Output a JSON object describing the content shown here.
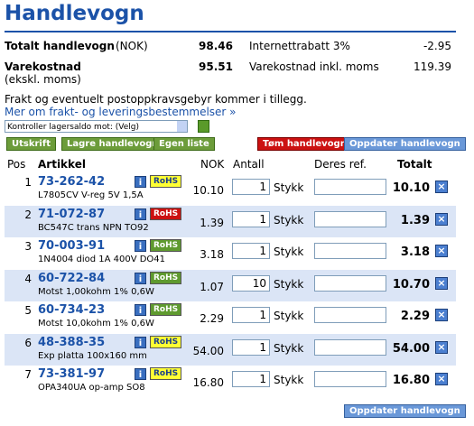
{
  "header": {
    "title": "Handlevogn"
  },
  "summary": {
    "total_label": "Totalt handlevogn",
    "total_unit": "(NOK)",
    "total_value": "98.46",
    "discount_label": "Internettrabatt 3%",
    "discount_value": "-2.95",
    "cost_label": "Varekostnad",
    "cost_note": "(ekskl. moms)",
    "cost_value": "95.51",
    "cost_vat_label": "Varekostnad inkl. moms",
    "cost_vat_value": "119.39"
  },
  "notice": "Frakt og eventuelt postoppkravsgebyr kommer i tillegg.",
  "link": "Mer om frakt- og leveringsbestemmelser »",
  "stock_select": "Kontroller lagersaldo mot: (Velg)",
  "buttons": {
    "print": "Utskrift",
    "save": "Lagre handlevogn",
    "own_list": "Egen liste",
    "empty": "Tøm handlevogn",
    "update": "Oppdater handlevogn"
  },
  "table": {
    "columns": [
      "Pos",
      "Artikkel",
      "NOK",
      "Antall",
      "Deres ref.",
      "Totalt"
    ],
    "rows": [
      {
        "pos": "1",
        "code": "73-262-42",
        "description": "L7805CV V-reg 5V 1,5A",
        "rohs": "RoHS",
        "rohs_color": "#ffff33",
        "price": "10.10",
        "qty": "1",
        "unit": "Stykk",
        "total": "10.10"
      },
      {
        "pos": "2",
        "code": "71-072-87",
        "description": "BC547C trans NPN TO92",
        "rohs": "RoHS",
        "rohs_color": "#cc1111",
        "price": "1.39",
        "qty": "1",
        "unit": "Stykk",
        "total": "1.39"
      },
      {
        "pos": "3",
        "code": "70-003-91",
        "description": "1N4004 diod 1A 400V DO41",
        "rohs": "RoHS",
        "rohs_color": "#5f9a2f",
        "price": "3.18",
        "qty": "1",
        "unit": "Stykk",
        "total": "3.18"
      },
      {
        "pos": "4",
        "code": "60-722-84",
        "description": "Motst 1,00kohm 1% 0,6W",
        "rohs": "RoHS",
        "rohs_color": "#5f9a2f",
        "price": "1.07",
        "qty": "10",
        "unit": "Stykk",
        "total": "10.70"
      },
      {
        "pos": "5",
        "code": "60-734-23",
        "description": "Motst 10,0kohm 1% 0,6W",
        "rohs": "RoHS",
        "rohs_color": "#5f9a2f",
        "price": "2.29",
        "qty": "1",
        "unit": "Stykk",
        "total": "2.29"
      },
      {
        "pos": "6",
        "code": "48-388-35",
        "description": "Exp platta 100x160 mm",
        "rohs": "RoHS",
        "rohs_color": "#ffff33",
        "price": "54.00",
        "qty": "1",
        "unit": "Stykk",
        "total": "54.00"
      },
      {
        "pos": "7",
        "code": "73-381-97",
        "description": "OPA340UA op-amp SO8",
        "rohs": "RoHS",
        "rohs_color": "#ffff33",
        "price": "16.80",
        "qty": "1",
        "unit": "Stykk",
        "total": "16.80"
      }
    ]
  },
  "footer_button": "Oppdater handlevogn"
}
